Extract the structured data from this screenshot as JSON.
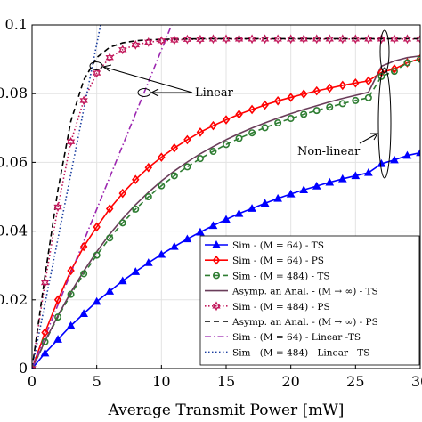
{
  "chart_data": {
    "type": "line",
    "xlabel": "Average Transmit Power [mW]",
    "ylabel": "",
    "xlim": [
      0,
      30
    ],
    "ylim": [
      0,
      0.1
    ],
    "x_ticks": [
      "0",
      "5",
      "10",
      "15",
      "20",
      "25",
      "30"
    ],
    "y_ticks": [
      "0",
      "0.02",
      "0.04",
      "0.06",
      "0.08",
      "0.1"
    ],
    "grid": true,
    "legend_position": "bottom-right",
    "annotations": [
      {
        "text": "Linear"
      },
      {
        "text": "Non-linear"
      }
    ],
    "series": [
      {
        "name": "Sim - (M = 64) - TS",
        "color": "#0000ff",
        "marker": "triangle",
        "line": "solid",
        "x": [
          0,
          1,
          2,
          3,
          4,
          5,
          6,
          7,
          8,
          9,
          10,
          11,
          12,
          13,
          14,
          15,
          16,
          17,
          18,
          19,
          20,
          21,
          22,
          23,
          24,
          25,
          26,
          27,
          28,
          29,
          30
        ],
        "y": [
          0,
          0.0045,
          0.0085,
          0.0125,
          0.016,
          0.0195,
          0.0225,
          0.0255,
          0.0282,
          0.0308,
          0.0332,
          0.0355,
          0.0377,
          0.0397,
          0.0416,
          0.0434,
          0.0451,
          0.0466,
          0.0481,
          0.0495,
          0.0508,
          0.052,
          0.0531,
          0.0542,
          0.0552,
          0.0561,
          0.057,
          0.0596,
          0.0607,
          0.062,
          0.0628
        ]
      },
      {
        "name": "Sim - (M = 64) - PS",
        "color": "#ff0000",
        "marker": "diamond",
        "line": "solid",
        "x": [
          0,
          1,
          2,
          3,
          4,
          5,
          6,
          7,
          8,
          9,
          10,
          11,
          12,
          13,
          14,
          15,
          16,
          17,
          18,
          19,
          20,
          21,
          22,
          23,
          24,
          25,
          26,
          27,
          28,
          29,
          30
        ],
        "y": [
          0,
          0.0105,
          0.02,
          0.0285,
          0.0355,
          0.0412,
          0.0465,
          0.051,
          0.055,
          0.0585,
          0.0615,
          0.0642,
          0.0666,
          0.0688,
          0.0707,
          0.0724,
          0.074,
          0.0754,
          0.0767,
          0.0779,
          0.0789,
          0.0799,
          0.0808,
          0.0816,
          0.0824,
          0.0831,
          0.0837,
          0.0862,
          0.0872,
          0.089,
          0.0902
        ]
      },
      {
        "name": "Sim - (M = 484) - TS",
        "color": "#2e7d32",
        "marker": "circle",
        "line": "dashed",
        "x": [
          0,
          1,
          2,
          3,
          4,
          5,
          6,
          7,
          8,
          9,
          10,
          11,
          12,
          13,
          14,
          15,
          16,
          17,
          18,
          19,
          20,
          21,
          22,
          23,
          24,
          25,
          26,
          27,
          28,
          29,
          30
        ],
        "y": [
          0,
          0.0078,
          0.015,
          0.0216,
          0.0276,
          0.033,
          0.038,
          0.0424,
          0.0464,
          0.05,
          0.0532,
          0.0561,
          0.0587,
          0.0611,
          0.0632,
          0.0652,
          0.067,
          0.0686,
          0.0701,
          0.0715,
          0.0728,
          0.074,
          0.0751,
          0.0761,
          0.0771,
          0.078,
          0.0788,
          0.085,
          0.0865,
          0.089,
          0.09
        ]
      },
      {
        "name": "Asymp. an Anal. - (M → ∞) - TS",
        "color": "#6a3d5a",
        "marker": "none",
        "line": "solid",
        "x": [
          0,
          1,
          2,
          3,
          4,
          5,
          6,
          7,
          8,
          9,
          10,
          11,
          12,
          13,
          14,
          15,
          16,
          17,
          18,
          19,
          20,
          21,
          22,
          23,
          24,
          25,
          26,
          27,
          28,
          29,
          30
        ],
        "y": [
          0,
          0.008,
          0.0154,
          0.0222,
          0.0284,
          0.034,
          0.0391,
          0.0436,
          0.0477,
          0.0513,
          0.0546,
          0.0575,
          0.0601,
          0.0625,
          0.0646,
          0.0666,
          0.0684,
          0.07,
          0.0715,
          0.0729,
          0.0742,
          0.0754,
          0.0765,
          0.0776,
          0.0786,
          0.0795,
          0.0804,
          0.088,
          0.0895,
          0.0905,
          0.091
        ]
      },
      {
        "name": "Sim - (M = 484) - PS",
        "color": "#c2185b",
        "marker": "hexagram",
        "line": "dotted",
        "x": [
          0,
          1,
          2,
          3,
          4,
          5,
          6,
          7,
          8,
          9,
          10,
          11,
          12,
          13,
          14,
          15,
          16,
          17,
          18,
          19,
          20,
          21,
          22,
          23,
          24,
          25,
          26,
          27,
          28,
          29,
          30
        ],
        "y": [
          0,
          0.025,
          0.047,
          0.066,
          0.078,
          0.086,
          0.0905,
          0.0928,
          0.0942,
          0.095,
          0.0954,
          0.0956,
          0.0958,
          0.0958,
          0.0959,
          0.0959,
          0.0959,
          0.0959,
          0.0959,
          0.0959,
          0.0959,
          0.0959,
          0.0959,
          0.0959,
          0.0959,
          0.0959,
          0.0959,
          0.0959,
          0.0959,
          0.0959,
          0.0959
        ]
      },
      {
        "name": "Asymp. an Anal. - (M → ∞) - PS",
        "color": "#000000",
        "marker": "none",
        "line": "dashed",
        "x": [
          0,
          1,
          2,
          3,
          4,
          5,
          6,
          7,
          8,
          9,
          10,
          11,
          12,
          13,
          14,
          15,
          16,
          17,
          18,
          19,
          20,
          21,
          22,
          23,
          24,
          25,
          26,
          27,
          28,
          29,
          30
        ],
        "y": [
          0,
          0.027,
          0.052,
          0.072,
          0.084,
          0.0905,
          0.0935,
          0.0948,
          0.0954,
          0.0957,
          0.0958,
          0.0959,
          0.0959,
          0.096,
          0.096,
          0.096,
          0.096,
          0.096,
          0.096,
          0.096,
          0.096,
          0.096,
          0.096,
          0.096,
          0.096,
          0.096,
          0.096,
          0.096,
          0.096,
          0.096,
          0.096
        ]
      },
      {
        "name": "Sim - (M = 64) - Linear -TS",
        "color": "#9c27b0",
        "marker": "none",
        "line": "dashdot",
        "x": [
          0,
          11
        ],
        "y": [
          0,
          0.102
        ]
      },
      {
        "name": "Sim - (M = 484) - Linear - TS",
        "color": "#1a3ea0",
        "marker": "none",
        "line": "dotted",
        "x": [
          0,
          5.4
        ],
        "y": [
          0,
          0.102
        ]
      }
    ]
  }
}
